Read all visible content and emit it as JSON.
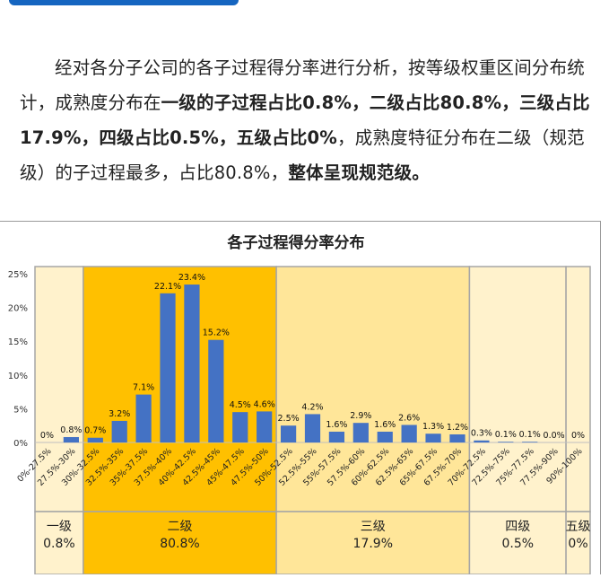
{
  "paragraph": {
    "s1": "经对各分子公司的各子过程得分率进行分析，按等级权重区间分布统计，成熟度分布在",
    "b1": "一级的子过程占比0.8%，二级占比80.8%，三级占比17.9%，四级占比0.5%，五级占比0%",
    "s2": "，成熟度特征分布在二级（规范级）的子过程最多，占比80.8%，",
    "b2": "整体呈现规范级。"
  },
  "colors": {
    "accent_bar": "#1565c0",
    "series": "#4472c4",
    "level1_band": "#fff2cc",
    "level2_band": "#ffc000",
    "level3_band": "#ffe699",
    "level4_band": "#fff2cc",
    "level5_band": "#fff2cc"
  },
  "chart_data": {
    "type": "bar",
    "title": "各子过程得分率分布",
    "categories": [
      "0%-27.5%",
      "27.5%-30%",
      "30%-32.5%",
      "32.5%-35%",
      "35%-37.5%",
      "37.5%-40%",
      "40%-42.5%",
      "42.5%-45%",
      "45%-47.5%",
      "47.5%-50%",
      "50%-52.5%",
      "52.5%-55%",
      "55%-57.5%",
      "57.5%-60%",
      "60%-62.5%",
      "62.5%-65%",
      "65%-67.5%",
      "67.5%-70%",
      "70%-72.5%",
      "72.5%-75%",
      "75%-77.5%",
      "77.5%-90%",
      "90%-100%"
    ],
    "values": [
      0,
      0.8,
      0.7,
      3.2,
      7.1,
      22.1,
      23.4,
      15.2,
      4.5,
      4.6,
      2.5,
      4.2,
      1.6,
      2.9,
      1.6,
      2.6,
      1.3,
      1.2,
      0.3,
      0.1,
      0.1,
      0.0,
      0
    ],
    "value_labels": [
      "0%",
      "0.8%",
      "0.7%",
      "3.2%",
      "7.1%",
      "22.1%",
      "23.4%",
      "15.2%",
      "4.5%",
      "4.6%",
      "2.5%",
      "4.2%",
      "1.6%",
      "2.9%",
      "1.6%",
      "2.6%",
      "1.3%",
      "1.2%",
      "0.3%",
      "0.1%",
      "0.1%",
      "0.0%",
      "0%"
    ],
    "y_ticks": [
      "0%",
      "5%",
      "10%",
      "15%",
      "20%",
      "25%"
    ],
    "ylim": [
      0,
      25
    ],
    "grid": false,
    "bands": [
      {
        "name": "一级",
        "share": "0.8%",
        "start": 0,
        "end": 2
      },
      {
        "name": "二级",
        "share": "80.8%",
        "start": 2,
        "end": 10
      },
      {
        "name": "三级",
        "share": "17.9%",
        "start": 10,
        "end": 18
      },
      {
        "name": "四级",
        "share": "0.5%",
        "start": 18,
        "end": 22
      },
      {
        "name": "五级",
        "share": "0%",
        "start": 22,
        "end": 23
      }
    ]
  }
}
